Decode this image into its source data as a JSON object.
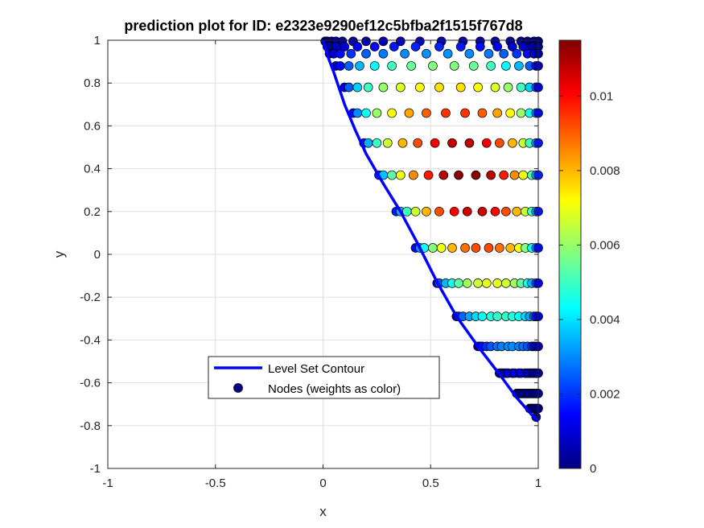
{
  "chart_data": {
    "type": "scatter",
    "title": "prediction plot for ID: e2323e9290ef12c5bfba2f1515f767d8",
    "xlabel": "x",
    "ylabel": "y",
    "xlim": [
      -1,
      1
    ],
    "ylim": [
      -1,
      1
    ],
    "xticks": [
      -1,
      -0.5,
      0,
      0.5,
      1
    ],
    "xtick_labels": [
      "-1",
      "-0.5",
      "0",
      "0.5",
      "1"
    ],
    "yticks": [
      -1,
      -0.8,
      -0.6,
      -0.4,
      -0.2,
      0,
      0.2,
      0.4,
      0.6,
      0.8,
      1
    ],
    "ytick_labels": [
      "-1",
      "-0.8",
      "-0.6",
      "-0.4",
      "-0.2",
      "0",
      "0.2",
      "0.4",
      "0.6",
      "0.8",
      "1"
    ],
    "grid": true,
    "legend": {
      "location": "lower-center",
      "entries": [
        "Level Set Contour",
        "Nodes (weights as color)"
      ]
    },
    "colorbar": {
      "colormap": "jet",
      "clim": [
        0,
        0.0115
      ],
      "ticks": [
        0,
        0.002,
        0.004,
        0.006,
        0.008,
        0.01
      ],
      "tick_labels": [
        "0",
        "0.002",
        "0.004",
        "0.006",
        "0.008",
        "0.01"
      ]
    },
    "contour": {
      "color": "#0000ff",
      "x": [
        0.0,
        0.02,
        0.05,
        0.1,
        0.15,
        0.2,
        0.28,
        0.36,
        0.44,
        0.53,
        0.62,
        0.72,
        0.82,
        0.9,
        0.97,
        1.0
      ],
      "y": [
        1.0,
        0.93,
        0.85,
        0.7,
        0.58,
        0.47,
        0.33,
        0.2,
        0.05,
        -0.13,
        -0.29,
        -0.43,
        -0.56,
        -0.67,
        -0.75,
        -0.78
      ]
    },
    "node_rows": [
      {
        "y": 0.995,
        "x": [
          0.01,
          0.02,
          0.04,
          0.06,
          0.09,
          0.14,
          0.2,
          0.28,
          0.36,
          0.45,
          0.55,
          0.65,
          0.73,
          0.8,
          0.87,
          0.92,
          0.95,
          0.98,
          1.0
        ],
        "w": [
          0.0,
          0.0001,
          0.0002,
          0.0003,
          0.0004,
          0.0005,
          0.0006,
          0.0007,
          0.0008,
          0.0008,
          0.0008,
          0.0007,
          0.0006,
          0.0005,
          0.0004,
          0.0003,
          0.0002,
          0.0001,
          0.0
        ]
      },
      {
        "y": 0.97,
        "x": [
          0.02,
          0.03,
          0.06,
          0.1,
          0.16,
          0.24,
          0.33,
          0.43,
          0.54,
          0.64,
          0.73,
          0.81,
          0.88,
          0.93,
          0.97,
          1.0
        ],
        "w": [
          0.0002,
          0.0004,
          0.0007,
          0.001,
          0.0013,
          0.0015,
          0.0017,
          0.0018,
          0.0018,
          0.0017,
          0.0015,
          0.0013,
          0.001,
          0.0007,
          0.0004,
          0.0002
        ]
      },
      {
        "y": 0.937,
        "x": [
          0.03,
          0.05,
          0.08,
          0.13,
          0.2,
          0.28,
          0.38,
          0.48,
          0.58,
          0.68,
          0.77,
          0.84,
          0.9,
          0.95,
          0.98,
          1.0
        ],
        "w": [
          0.0004,
          0.0009,
          0.0015,
          0.002,
          0.0025,
          0.0028,
          0.003,
          0.0031,
          0.0031,
          0.003,
          0.0028,
          0.0025,
          0.002,
          0.0015,
          0.0009,
          0.0004
        ]
      },
      {
        "y": 0.88,
        "x": [
          0.06,
          0.08,
          0.12,
          0.17,
          0.24,
          0.32,
          0.41,
          0.51,
          0.61,
          0.7,
          0.78,
          0.85,
          0.91,
          0.96,
          0.99,
          1.0
        ],
        "w": [
          0.0007,
          0.0015,
          0.0025,
          0.0035,
          0.0043,
          0.005,
          0.0055,
          0.0058,
          0.0058,
          0.0055,
          0.005,
          0.0043,
          0.0035,
          0.0025,
          0.0015,
          0.0007
        ]
      },
      {
        "y": 0.78,
        "x": [
          0.1,
          0.12,
          0.16,
          0.21,
          0.28,
          0.36,
          0.45,
          0.54,
          0.64,
          0.72,
          0.8,
          0.86,
          0.92,
          0.96,
          0.99,
          1.0
        ],
        "w": [
          0.0012,
          0.0025,
          0.0038,
          0.005,
          0.006,
          0.0068,
          0.0072,
          0.0075,
          0.0075,
          0.0072,
          0.0068,
          0.006,
          0.005,
          0.0038,
          0.0025,
          0.0012
        ]
      },
      {
        "y": 0.66,
        "x": [
          0.14,
          0.16,
          0.2,
          0.25,
          0.32,
          0.4,
          0.48,
          0.57,
          0.66,
          0.74,
          0.81,
          0.87,
          0.92,
          0.96,
          0.99,
          1.0
        ],
        "w": [
          0.0015,
          0.003,
          0.0045,
          0.006,
          0.0072,
          0.0082,
          0.009,
          0.0095,
          0.0095,
          0.009,
          0.0082,
          0.0072,
          0.006,
          0.0045,
          0.003,
          0.0015
        ]
      },
      {
        "y": 0.52,
        "x": [
          0.19,
          0.21,
          0.25,
          0.3,
          0.37,
          0.44,
          0.52,
          0.6,
          0.68,
          0.76,
          0.82,
          0.88,
          0.93,
          0.96,
          0.99,
          1.0
        ],
        "w": [
          0.0017,
          0.0034,
          0.005,
          0.0066,
          0.008,
          0.0092,
          0.0102,
          0.0108,
          0.0108,
          0.0102,
          0.0092,
          0.008,
          0.0066,
          0.005,
          0.0034,
          0.0017
        ]
      },
      {
        "y": 0.37,
        "x": [
          0.26,
          0.28,
          0.32,
          0.36,
          0.42,
          0.49,
          0.56,
          0.63,
          0.71,
          0.78,
          0.84,
          0.89,
          0.93,
          0.97,
          0.99,
          1.0
        ],
        "w": [
          0.0018,
          0.0036,
          0.0053,
          0.007,
          0.0085,
          0.0098,
          0.0108,
          0.0114,
          0.0114,
          0.0108,
          0.0098,
          0.0085,
          0.007,
          0.0053,
          0.0036,
          0.0018
        ]
      },
      {
        "y": 0.2,
        "x": [
          0.34,
          0.36,
          0.39,
          0.43,
          0.48,
          0.54,
          0.61,
          0.67,
          0.74,
          0.8,
          0.85,
          0.9,
          0.94,
          0.97,
          0.99,
          1.0
        ],
        "w": [
          0.0017,
          0.0034,
          0.005,
          0.0066,
          0.008,
          0.0092,
          0.0101,
          0.0106,
          0.0106,
          0.0101,
          0.0092,
          0.008,
          0.0066,
          0.005,
          0.0034,
          0.0017
        ]
      },
      {
        "y": 0.03,
        "x": [
          0.43,
          0.45,
          0.47,
          0.51,
          0.55,
          0.6,
          0.66,
          0.71,
          0.77,
          0.82,
          0.87,
          0.91,
          0.94,
          0.97,
          0.99,
          1.0
        ],
        "w": [
          0.0015,
          0.003,
          0.0044,
          0.0058,
          0.007,
          0.008,
          0.0088,
          0.0092,
          0.0092,
          0.0088,
          0.008,
          0.007,
          0.0058,
          0.0044,
          0.003,
          0.0015
        ]
      },
      {
        "y": -0.135,
        "x": [
          0.53,
          0.54,
          0.57,
          0.6,
          0.63,
          0.67,
          0.72,
          0.76,
          0.81,
          0.85,
          0.89,
          0.92,
          0.95,
          0.97,
          0.99,
          1.0
        ],
        "w": [
          0.0012,
          0.0024,
          0.0035,
          0.0045,
          0.0054,
          0.0061,
          0.0066,
          0.0069,
          0.0069,
          0.0066,
          0.0061,
          0.0054,
          0.0045,
          0.0035,
          0.0024,
          0.0012
        ]
      },
      {
        "y": -0.29,
        "x": [
          0.62,
          0.63,
          0.65,
          0.68,
          0.71,
          0.74,
          0.78,
          0.81,
          0.85,
          0.88,
          0.91,
          0.94,
          0.96,
          0.98,
          0.99,
          1.0
        ],
        "w": [
          0.0009,
          0.0018,
          0.0026,
          0.0033,
          0.0039,
          0.0044,
          0.0047,
          0.0049,
          0.0049,
          0.0047,
          0.0044,
          0.0039,
          0.0033,
          0.0026,
          0.0018,
          0.0009
        ]
      },
      {
        "y": -0.43,
        "x": [
          0.72,
          0.73,
          0.74,
          0.76,
          0.78,
          0.81,
          0.83,
          0.86,
          0.88,
          0.91,
          0.93,
          0.95,
          0.97,
          0.98,
          0.99,
          1.0
        ],
        "w": [
          0.0005,
          0.0011,
          0.0016,
          0.002,
          0.0024,
          0.0027,
          0.0029,
          0.003,
          0.003,
          0.0029,
          0.0027,
          0.0024,
          0.002,
          0.0016,
          0.0011,
          0.0005
        ]
      },
      {
        "y": -0.555,
        "x": [
          0.82,
          0.83,
          0.84,
          0.85,
          0.86,
          0.88,
          0.89,
          0.91,
          0.92,
          0.94,
          0.95,
          0.96,
          0.97,
          0.98,
          0.99,
          1.0
        ],
        "w": [
          0.0002,
          0.0005,
          0.0007,
          0.0009,
          0.0011,
          0.0012,
          0.0013,
          0.0013,
          0.0013,
          0.0013,
          0.0012,
          0.0011,
          0.0009,
          0.0007,
          0.0005,
          0.0002
        ]
      },
      {
        "y": -0.65,
        "x": [
          0.9,
          0.91,
          0.91,
          0.92,
          0.93,
          0.94,
          0.95,
          0.96,
          0.97,
          0.98,
          0.99,
          1.0
        ],
        "w": [
          0.0001,
          0.0002,
          0.0003,
          0.0004,
          0.0004,
          0.0005,
          0.0005,
          0.0004,
          0.0004,
          0.0003,
          0.0002,
          0.0001
        ]
      },
      {
        "y": -0.72,
        "x": [
          0.96,
          0.97,
          0.98,
          0.99,
          1.0
        ],
        "w": [
          0.0,
          0.0001,
          0.0001,
          0.0001,
          0.0
        ]
      },
      {
        "y": -0.76,
        "x": [
          0.99
        ],
        "w": [
          0.0
        ]
      }
    ]
  }
}
